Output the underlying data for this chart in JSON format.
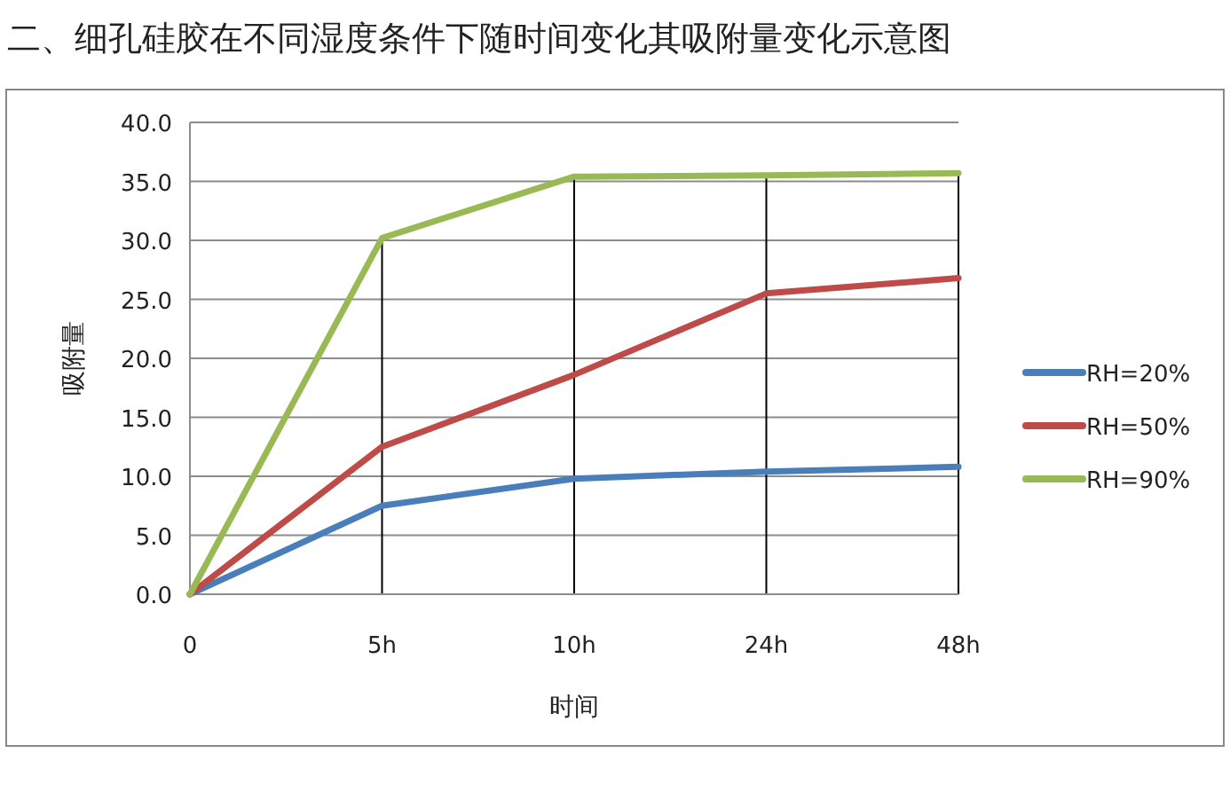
{
  "chart_data": {
    "type": "line",
    "title": "二、细孔硅胶在不同湿度条件下随时间变化其吸附量变化示意图",
    "xlabel": "时间",
    "ylabel": "吸附量",
    "categories": [
      "0",
      "5h",
      "10h",
      "24h",
      "48h"
    ],
    "series": [
      {
        "name": "RH=20%",
        "color": "#4a7ebb",
        "values": [
          0,
          7.5,
          9.8,
          10.4,
          10.8
        ]
      },
      {
        "name": "RH=50%",
        "color": "#be4b48",
        "values": [
          0,
          12.5,
          18.6,
          25.5,
          26.8
        ]
      },
      {
        "name": "RH=90%",
        "color": "#98b954",
        "values": [
          0,
          30.2,
          35.4,
          35.5,
          35.7
        ]
      }
    ],
    "ylim": [
      0,
      40
    ],
    "yticks": [
      {
        "value": 0,
        "label": "0.0"
      },
      {
        "value": 5,
        "label": "5.0"
      },
      {
        "value": 10,
        "label": "10.0"
      },
      {
        "value": 15,
        "label": "15.0"
      },
      {
        "value": 20,
        "label": "20.0"
      },
      {
        "value": 25,
        "label": "25.0"
      },
      {
        "value": 30,
        "label": "30.0"
      },
      {
        "value": 35,
        "label": "35.0"
      },
      {
        "value": 40,
        "label": "40.0"
      }
    ],
    "grid": true,
    "legend": "right",
    "marker": "none",
    "line_style": "solid"
  }
}
